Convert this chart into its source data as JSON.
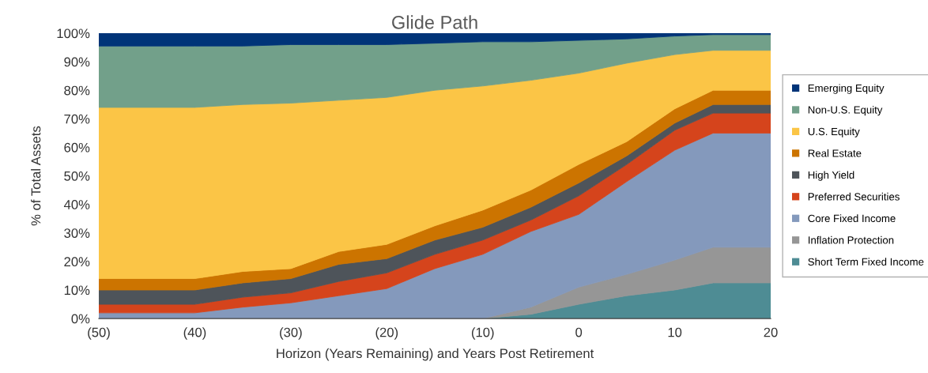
{
  "chart_data": {
    "type": "area",
    "stacked": true,
    "title": "Glide Path",
    "xlabel": "Horizon (Years Remaining) and Years Post Retirement",
    "ylabel": "% of Total Assets",
    "x": [
      -50,
      -40,
      -35,
      -30,
      -25,
      -20,
      -15,
      -10,
      -5,
      0,
      5,
      10,
      14,
      20
    ],
    "xlim": [
      -50,
      20
    ],
    "xticks": [
      {
        "value": -50,
        "label": "(50)"
      },
      {
        "value": -40,
        "label": "(40)"
      },
      {
        "value": -30,
        "label": "(30)"
      },
      {
        "value": -20,
        "label": "(20)"
      },
      {
        "value": -10,
        "label": "(10)"
      },
      0,
      10,
      20
    ],
    "ylim": [
      0,
      100
    ],
    "yticks": [
      {
        "value": 0,
        "label": "0%"
      },
      {
        "value": 10,
        "label": "10%"
      },
      {
        "value": 20,
        "label": "20%"
      },
      {
        "value": 30,
        "label": "30%"
      },
      {
        "value": 40,
        "label": "40%"
      },
      {
        "value": 50,
        "label": "50%"
      },
      {
        "value": 60,
        "label": "60%"
      },
      {
        "value": 70,
        "label": "70%"
      },
      {
        "value": 80,
        "label": "80%"
      },
      {
        "value": 90,
        "label": "90%"
      },
      {
        "value": 100,
        "label": "100%"
      }
    ],
    "grid": false,
    "legend": "right",
    "series": [
      {
        "name": "Short Term Fixed Income",
        "color": "#4e8c94",
        "values": [
          0,
          0,
          0,
          0,
          0,
          0,
          0,
          0,
          1.5,
          5,
          8,
          10,
          12.5,
          12.5
        ]
      },
      {
        "name": "Inflation Protection",
        "color": "#969696",
        "values": [
          0,
          0,
          0,
          0,
          0,
          0,
          0,
          0,
          2.5,
          6,
          7.5,
          10.5,
          12.5,
          12.5
        ]
      },
      {
        "name": "Core Fixed Income",
        "color": "#8499bc",
        "values": [
          2,
          2,
          4,
          5.5,
          8,
          10.5,
          17.5,
          22.5,
          26.5,
          25.5,
          32.5,
          38.5,
          40,
          40
        ]
      },
      {
        "name": "Preferred Securities",
        "color": "#d5441c",
        "values": [
          3,
          3,
          3.5,
          3.5,
          5,
          5.5,
          5,
          5,
          4,
          6.5,
          6,
          7,
          7,
          7
        ]
      },
      {
        "name": "High Yield",
        "color": "#4e545a",
        "values": [
          5,
          5,
          5,
          5,
          6,
          5,
          5,
          4.5,
          4.5,
          4.5,
          3,
          2.5,
          3,
          3
        ]
      },
      {
        "name": "Real Estate",
        "color": "#cc7400",
        "values": [
          4,
          4,
          4,
          3.5,
          4.5,
          5,
          5,
          6,
          6,
          6.5,
          5,
          5,
          5,
          5
        ]
      },
      {
        "name": "U.S. Equity",
        "color": "#fbc546",
        "values": [
          60,
          60,
          58.5,
          58,
          53,
          51.5,
          47.5,
          43.5,
          38.5,
          32,
          27.5,
          19,
          14,
          14
        ]
      },
      {
        "name": "Non-U.S. Equity",
        "color": "#72a08a",
        "values": [
          21.5,
          21.5,
          20.5,
          20.5,
          19.5,
          18.5,
          16.5,
          15.5,
          13.5,
          11.5,
          8.5,
          6.5,
          5.5,
          5.5
        ]
      },
      {
        "name": "Emerging Equity",
        "color": "#003478",
        "values": [
          4.5,
          4.5,
          4.5,
          4,
          4,
          4,
          3.5,
          3,
          3,
          2.5,
          2,
          1,
          0.5,
          0.5
        ]
      }
    ]
  }
}
